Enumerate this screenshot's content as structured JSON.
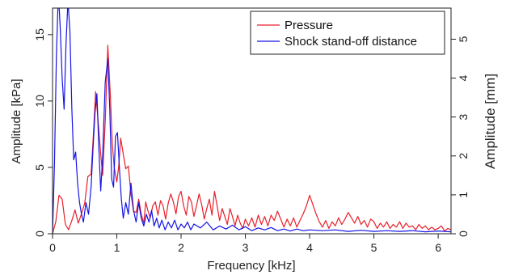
{
  "chart_data": {
    "type": "line",
    "xlabel": "Frequency [kHz]",
    "ylabel_left": "Amplitude [kPa]",
    "ylabel_right": "Amplitude [mm]",
    "xlim": [
      0,
      6.2
    ],
    "ylim_left": [
      0,
      17
    ],
    "ylim_right": [
      0,
      5.8
    ],
    "x_ticks": [
      0,
      1,
      2,
      3,
      4,
      5,
      6
    ],
    "y_left_ticks": [
      0,
      5,
      10,
      15
    ],
    "y_right_ticks": [
      0,
      1,
      2,
      3,
      4,
      5
    ],
    "grid": false,
    "legend_position": "top-right",
    "series": [
      {
        "name": "Pressure",
        "color": "#e8202a",
        "axis": "left",
        "points": [
          [
            0.0,
            0.0
          ],
          [
            0.05,
            0.9
          ],
          [
            0.1,
            2.9
          ],
          [
            0.15,
            2.6
          ],
          [
            0.2,
            0.7
          ],
          [
            0.25,
            0.3
          ],
          [
            0.3,
            1.0
          ],
          [
            0.35,
            1.8
          ],
          [
            0.4,
            0.8
          ],
          [
            0.45,
            1.5
          ],
          [
            0.5,
            2.3
          ],
          [
            0.55,
            4.3
          ],
          [
            0.6,
            4.5
          ],
          [
            0.63,
            7.0
          ],
          [
            0.67,
            10.7
          ],
          [
            0.7,
            9.0
          ],
          [
            0.75,
            6.0
          ],
          [
            0.78,
            4.4
          ],
          [
            0.82,
            8.5
          ],
          [
            0.86,
            14.2
          ],
          [
            0.9,
            10.3
          ],
          [
            0.93,
            6.8
          ],
          [
            0.96,
            5.0
          ],
          [
            1.0,
            3.9
          ],
          [
            1.03,
            5.1
          ],
          [
            1.06,
            7.2
          ],
          [
            1.1,
            6.0
          ],
          [
            1.14,
            4.9
          ],
          [
            1.18,
            5.1
          ],
          [
            1.22,
            3.0
          ],
          [
            1.26,
            1.7
          ],
          [
            1.3,
            1.6
          ],
          [
            1.34,
            2.6
          ],
          [
            1.38,
            1.5
          ],
          [
            1.42,
            0.8
          ],
          [
            1.45,
            2.4
          ],
          [
            1.48,
            1.8
          ],
          [
            1.52,
            1.2
          ],
          [
            1.56,
            2.1
          ],
          [
            1.6,
            2.4
          ],
          [
            1.64,
            1.4
          ],
          [
            1.68,
            2.5
          ],
          [
            1.72,
            2.1
          ],
          [
            1.76,
            1.1
          ],
          [
            1.8,
            2.3
          ],
          [
            1.84,
            3.0
          ],
          [
            1.88,
            2.4
          ],
          [
            1.92,
            1.5
          ],
          [
            1.96,
            2.8
          ],
          [
            2.0,
            3.2
          ],
          [
            2.04,
            2.1
          ],
          [
            2.08,
            1.4
          ],
          [
            2.12,
            2.8
          ],
          [
            2.16,
            2.4
          ],
          [
            2.2,
            1.3
          ],
          [
            2.24,
            2.1
          ],
          [
            2.28,
            3.0
          ],
          [
            2.32,
            2.2
          ],
          [
            2.36,
            1.1
          ],
          [
            2.4,
            1.9
          ],
          [
            2.44,
            2.6
          ],
          [
            2.48,
            1.4
          ],
          [
            2.52,
            3.2
          ],
          [
            2.56,
            2.1
          ],
          [
            2.6,
            1.0
          ],
          [
            2.64,
            1.9
          ],
          [
            2.68,
            1.3
          ],
          [
            2.72,
            0.7
          ],
          [
            2.76,
            1.9
          ],
          [
            2.8,
            1.3
          ],
          [
            2.84,
            0.6
          ],
          [
            2.88,
            1.4
          ],
          [
            2.92,
            0.8
          ],
          [
            2.96,
            0.4
          ],
          [
            3.0,
            1.1
          ],
          [
            3.05,
            0.6
          ],
          [
            3.1,
            1.2
          ],
          [
            3.15,
            0.5
          ],
          [
            3.2,
            1.4
          ],
          [
            3.25,
            0.7
          ],
          [
            3.3,
            1.3
          ],
          [
            3.35,
            0.6
          ],
          [
            3.4,
            1.4
          ],
          [
            3.45,
            1.0
          ],
          [
            3.5,
            1.7
          ],
          [
            3.55,
            1.1
          ],
          [
            3.6,
            0.5
          ],
          [
            3.65,
            1.1
          ],
          [
            3.7,
            0.6
          ],
          [
            3.75,
            1.2
          ],
          [
            3.8,
            0.5
          ],
          [
            3.85,
            1.0
          ],
          [
            3.9,
            1.5
          ],
          [
            3.95,
            2.1
          ],
          [
            4.0,
            2.9
          ],
          [
            4.05,
            2.2
          ],
          [
            4.1,
            1.5
          ],
          [
            4.15,
            0.9
          ],
          [
            4.2,
            0.5
          ],
          [
            4.25,
            1.0
          ],
          [
            4.3,
            0.4
          ],
          [
            4.35,
            0.9
          ],
          [
            4.4,
            0.6
          ],
          [
            4.45,
            1.2
          ],
          [
            4.5,
            0.7
          ],
          [
            4.55,
            1.1
          ],
          [
            4.6,
            1.6
          ],
          [
            4.65,
            1.2
          ],
          [
            4.7,
            0.8
          ],
          [
            4.75,
            1.3
          ],
          [
            4.8,
            0.7
          ],
          [
            4.85,
            1.0
          ],
          [
            4.9,
            0.5
          ],
          [
            4.95,
            1.1
          ],
          [
            5.0,
            0.9
          ],
          [
            5.05,
            0.4
          ],
          [
            5.1,
            0.8
          ],
          [
            5.15,
            0.5
          ],
          [
            5.2,
            0.9
          ],
          [
            5.25,
            0.4
          ],
          [
            5.3,
            0.7
          ],
          [
            5.35,
            0.5
          ],
          [
            5.4,
            0.9
          ],
          [
            5.45,
            0.4
          ],
          [
            5.5,
            0.8
          ],
          [
            5.55,
            0.5
          ],
          [
            5.6,
            0.6
          ],
          [
            5.65,
            0.3
          ],
          [
            5.7,
            0.7
          ],
          [
            5.75,
            0.4
          ],
          [
            5.8,
            0.6
          ],
          [
            5.85,
            0.3
          ],
          [
            5.9,
            0.5
          ],
          [
            5.95,
            0.3
          ],
          [
            6.0,
            0.4
          ],
          [
            6.05,
            0.6
          ],
          [
            6.1,
            0.2
          ],
          [
            6.15,
            0.4
          ],
          [
            6.2,
            0.3
          ]
        ]
      },
      {
        "name": "Shock stand-off distance",
        "color": "#1414e6",
        "axis": "right",
        "points": [
          [
            0.0,
            0.0
          ],
          [
            0.03,
            1.8
          ],
          [
            0.06,
            4.6
          ],
          [
            0.09,
            6.2
          ],
          [
            0.12,
            5.3
          ],
          [
            0.15,
            4.0
          ],
          [
            0.18,
            3.2
          ],
          [
            0.21,
            4.9
          ],
          [
            0.24,
            6.0
          ],
          [
            0.27,
            5.2
          ],
          [
            0.3,
            3.2
          ],
          [
            0.33,
            1.9
          ],
          [
            0.36,
            2.1
          ],
          [
            0.39,
            1.3
          ],
          [
            0.42,
            0.8
          ],
          [
            0.45,
            0.5
          ],
          [
            0.48,
            0.3
          ],
          [
            0.52,
            0.8
          ],
          [
            0.56,
            0.5
          ],
          [
            0.6,
            1.2
          ],
          [
            0.63,
            2.2
          ],
          [
            0.66,
            3.1
          ],
          [
            0.69,
            3.6
          ],
          [
            0.72,
            2.2
          ],
          [
            0.75,
            1.1
          ],
          [
            0.78,
            2.0
          ],
          [
            0.82,
            3.9
          ],
          [
            0.86,
            4.5
          ],
          [
            0.89,
            3.2
          ],
          [
            0.92,
            1.4
          ],
          [
            0.95,
            1.2
          ],
          [
            0.98,
            2.5
          ],
          [
            1.01,
            2.6
          ],
          [
            1.04,
            1.7
          ],
          [
            1.07,
            0.9
          ],
          [
            1.1,
            0.4
          ],
          [
            1.14,
            0.8
          ],
          [
            1.18,
            0.5
          ],
          [
            1.22,
            1.3
          ],
          [
            1.26,
            0.6
          ],
          [
            1.3,
            0.3
          ],
          [
            1.34,
            0.8
          ],
          [
            1.38,
            0.4
          ],
          [
            1.42,
            0.2
          ],
          [
            1.46,
            0.5
          ],
          [
            1.5,
            0.3
          ],
          [
            1.54,
            0.6
          ],
          [
            1.58,
            0.2
          ],
          [
            1.62,
            0.4
          ],
          [
            1.66,
            0.15
          ],
          [
            1.7,
            0.35
          ],
          [
            1.75,
            0.1
          ],
          [
            1.8,
            0.3
          ],
          [
            1.85,
            0.15
          ],
          [
            1.9,
            0.35
          ],
          [
            1.95,
            0.1
          ],
          [
            2.0,
            0.25
          ],
          [
            2.05,
            0.15
          ],
          [
            2.1,
            0.3
          ],
          [
            2.15,
            0.1
          ],
          [
            2.2,
            0.25
          ],
          [
            2.3,
            0.15
          ],
          [
            2.4,
            0.3
          ],
          [
            2.5,
            0.1
          ],
          [
            2.6,
            0.2
          ],
          [
            2.7,
            0.12
          ],
          [
            2.8,
            0.22
          ],
          [
            2.9,
            0.1
          ],
          [
            3.0,
            0.18
          ],
          [
            3.1,
            0.08
          ],
          [
            3.2,
            0.15
          ],
          [
            3.3,
            0.1
          ],
          [
            3.4,
            0.16
          ],
          [
            3.5,
            0.08
          ],
          [
            3.6,
            0.12
          ],
          [
            3.7,
            0.07
          ],
          [
            3.8,
            0.12
          ],
          [
            3.9,
            0.08
          ],
          [
            4.0,
            0.1
          ],
          [
            4.2,
            0.08
          ],
          [
            4.4,
            0.1
          ],
          [
            4.6,
            0.06
          ],
          [
            4.8,
            0.09
          ],
          [
            5.0,
            0.06
          ],
          [
            5.2,
            0.08
          ],
          [
            5.4,
            0.06
          ],
          [
            5.6,
            0.08
          ],
          [
            5.8,
            0.05
          ],
          [
            6.0,
            0.07
          ],
          [
            6.2,
            0.05
          ]
        ]
      }
    ]
  }
}
